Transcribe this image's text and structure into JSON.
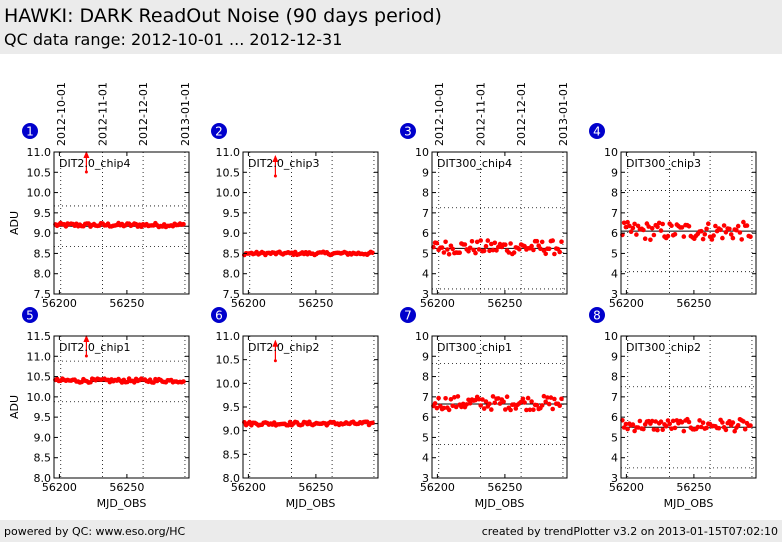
{
  "header": {
    "title": "HAWKI: DARK ReadOut Noise (90 days period)",
    "subtitle": "QC data range: 2012-10-01 ... 2012-12-31"
  },
  "footer": {
    "left": "powered by QC: www.eso.org/HC",
    "right": "created by trendPlotter v3.2 on 2013-01-15T07:02:10"
  },
  "colors": {
    "data": "#ff0000",
    "panel_number_bg": "#0000cc",
    "background_bar": "#ebebeb"
  },
  "top_date_ticks": {
    "labels": [
      "2012-10-01",
      "2012-11-01",
      "2012-12-01",
      "2013-01-01"
    ],
    "mjd": [
      56201,
      56232,
      56262,
      56293
    ]
  },
  "chart_data": [
    {
      "panel": "1",
      "type": "scatter",
      "label": "DIT2.0_chip4",
      "ylabel": "ADU",
      "xlabel": "",
      "xlim": [
        56196,
        56296
      ],
      "ylim": [
        7.5,
        11.0
      ],
      "yticks": [
        "7.5",
        "8.0",
        "8.5",
        "9.0",
        "9.5",
        "10.0",
        "10.5",
        "11.0"
      ],
      "xticks": [
        "56200",
        "56250"
      ],
      "mean": 9.17,
      "band": [
        8.67,
        9.67
      ],
      "level": 9.2,
      "noise": 0.05,
      "outlier": {
        "x": 56220,
        "y": 11.0
      }
    },
    {
      "panel": "2",
      "type": "scatter",
      "label": "DIT2.0_chip3",
      "ylabel": "",
      "xlabel": "",
      "xlim": [
        56196,
        56296
      ],
      "ylim": [
        7.5,
        11.0
      ],
      "yticks": [
        "7.5",
        "8.0",
        "8.5",
        "9.0",
        "9.5",
        "10.0",
        "10.5",
        "11.0"
      ],
      "xticks": [
        "56200",
        "56250"
      ],
      "mean": 8.5,
      "band": [
        8.5,
        8.5
      ],
      "level": 8.5,
      "noise": 0.04,
      "outlier": {
        "x": 56220,
        "y": 10.9
      }
    },
    {
      "panel": "3",
      "type": "scatter",
      "label": "DIT300_chip4",
      "ylabel": "",
      "xlabel": "",
      "xlim": [
        56196,
        56296
      ],
      "ylim": [
        3,
        10
      ],
      "yticks": [
        "3",
        "4",
        "5",
        "6",
        "7",
        "8",
        "9",
        "10"
      ],
      "xticks": [
        "56200",
        "56250"
      ],
      "mean": 5.25,
      "band": [
        3.25,
        7.25
      ],
      "level": 5.3,
      "noise": 0.35,
      "outlier": null
    },
    {
      "panel": "4",
      "type": "scatter",
      "label": "DIT300_chip3",
      "ylabel": "",
      "xlabel": "",
      "xlim": [
        56196,
        56296
      ],
      "ylim": [
        3,
        10
      ],
      "yticks": [
        "3",
        "4",
        "5",
        "6",
        "7",
        "8",
        "9",
        "10"
      ],
      "xticks": [
        "56200",
        "56250"
      ],
      "mean": 6.1,
      "band": [
        4.1,
        8.1
      ],
      "level": 6.1,
      "noise": 0.45,
      "outlier": null
    },
    {
      "panel": "5",
      "type": "scatter",
      "label": "DIT2.0_chip1",
      "ylabel": "ADU",
      "xlabel": "MJD_OBS",
      "xlim": [
        56196,
        56296
      ],
      "ylim": [
        8.0,
        11.5
      ],
      "yticks": [
        "8.0",
        "8.5",
        "9.0",
        "9.5",
        "10.0",
        "10.5",
        "11.0",
        "11.5"
      ],
      "xticks": [
        "56200",
        "56250"
      ],
      "mean": 10.38,
      "band": [
        9.88,
        10.88
      ],
      "level": 10.4,
      "noise": 0.05,
      "outlier": {
        "x": 56220,
        "y": 11.5
      }
    },
    {
      "panel": "6",
      "type": "scatter",
      "label": "DIT2.0_chip2",
      "ylabel": "",
      "xlabel": "MJD_OBS",
      "xlim": [
        56196,
        56296
      ],
      "ylim": [
        8.0,
        11.0
      ],
      "yticks": [
        "8.0",
        "8.5",
        "9.0",
        "9.5",
        "10.0",
        "10.5",
        "11.0"
      ],
      "xticks": [
        "56200",
        "56250"
      ],
      "mean": 9.15,
      "band": [
        9.15,
        9.15
      ],
      "level": 9.15,
      "noise": 0.04,
      "outlier": {
        "x": 56220,
        "y": 10.9
      }
    },
    {
      "panel": "7",
      "type": "scatter",
      "label": "DIT300_chip1",
      "ylabel": "",
      "xlabel": "MJD_OBS",
      "xlim": [
        56196,
        56296
      ],
      "ylim": [
        3,
        10
      ],
      "yticks": [
        "3",
        "4",
        "5",
        "6",
        "7",
        "8",
        "9",
        "10"
      ],
      "xticks": [
        "56200",
        "56250"
      ],
      "mean": 6.65,
      "band": [
        4.65,
        8.65
      ],
      "level": 6.7,
      "noise": 0.35,
      "outlier": null
    },
    {
      "panel": "8",
      "type": "scatter",
      "label": "DIT300_chip2",
      "ylabel": "",
      "xlabel": "MJD_OBS",
      "xlim": [
        56196,
        56296
      ],
      "ylim": [
        3,
        10
      ],
      "yticks": [
        "3",
        "4",
        "5",
        "6",
        "7",
        "8",
        "9",
        "10"
      ],
      "xticks": [
        "56200",
        "56250"
      ],
      "mean": 5.5,
      "band": [
        3.5,
        7.5
      ],
      "level": 5.6,
      "noise": 0.3,
      "outlier": null
    }
  ]
}
